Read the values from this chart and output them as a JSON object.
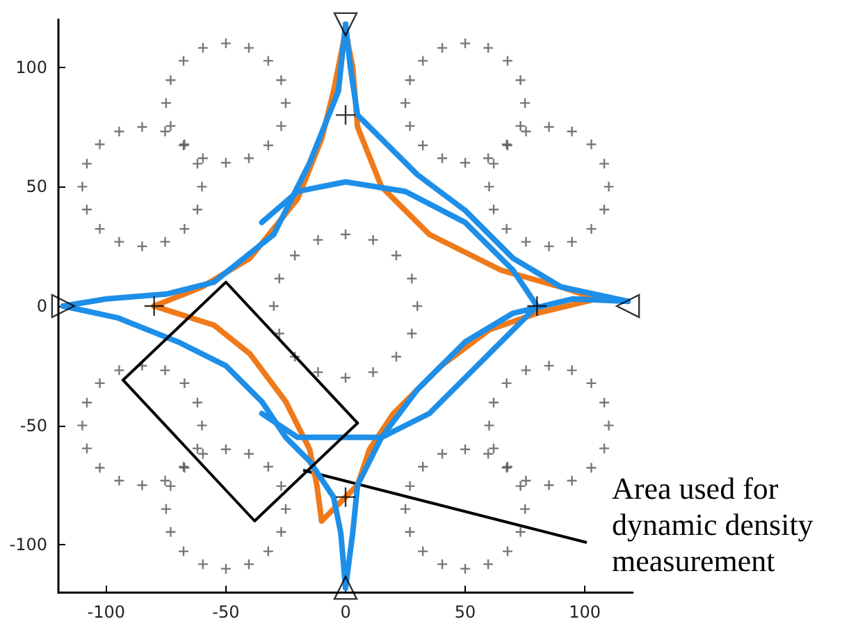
{
  "chart_data": {
    "type": "scatter",
    "xlim": [
      -120,
      120
    ],
    "ylim": [
      -120,
      120
    ],
    "xticks": [
      -100,
      -50,
      0,
      50,
      100
    ],
    "yticks": [
      -100,
      -50,
      0,
      50,
      100
    ],
    "annotations": [
      "Area used for dynamic density measurement"
    ],
    "series": [
      {
        "marker": "cross",
        "color": "#555555",
        "x": [
          -25,
          -26.9,
          -32.3,
          -40.4,
          -50,
          -59.6,
          -67.7,
          -73.1,
          -75,
          -73.1,
          -67.7,
          -59.6,
          -50,
          -40.4,
          -32.3,
          -26.9
        ],
        "values": [
          85,
          94.6,
          102.7,
          108.1,
          110,
          108.1,
          102.7,
          94.6,
          85,
          75.4,
          67.3,
          61.9,
          60,
          61.9,
          67.3,
          75.4
        ]
      },
      {
        "marker": "cross",
        "color": "#555555",
        "x": [
          -60,
          -61.9,
          -67.3,
          -75.4,
          -85,
          -94.6,
          -102.7,
          -108.1,
          -110,
          -108.1,
          -102.7,
          -94.6,
          -85,
          -75.4,
          -67.3,
          -61.9
        ],
        "values": [
          50,
          59.6,
          67.7,
          73.1,
          75,
          73.1,
          67.7,
          59.6,
          50,
          40.4,
          32.3,
          26.9,
          25,
          26.9,
          32.3,
          40.4
        ]
      },
      {
        "marker": "cross",
        "color": "#555555",
        "x": [
          -60,
          -61.9,
          -67.3,
          -75.4,
          -85,
          -94.6,
          -102.7,
          -108.1,
          -110,
          -108.1,
          -102.7,
          -94.6,
          -85,
          -75.4,
          -67.3,
          -61.9
        ],
        "values": [
          -50,
          -40.4,
          -32.3,
          -26.9,
          -25,
          -26.9,
          -32.3,
          -40.4,
          -50,
          -59.6,
          -67.7,
          -73.1,
          -75,
          -73.1,
          -67.7,
          -59.6
        ]
      },
      {
        "marker": "cross",
        "color": "#555555",
        "x": [
          -25,
          -26.9,
          -32.3,
          -40.4,
          -50,
          -59.6,
          -67.7,
          -73.1,
          -75,
          -73.1,
          -67.7,
          -59.6,
          -50,
          -40.4,
          -32.3,
          -26.9
        ],
        "values": [
          -85,
          -75.4,
          -67.3,
          -61.9,
          -60,
          -61.9,
          -67.3,
          -75.4,
          -85,
          -94.6,
          -102.7,
          -108.1,
          -110,
          -108.1,
          -102.7,
          -94.6
        ]
      },
      {
        "marker": "cross",
        "color": "#555555",
        "x": [
          75,
          73.1,
          67.7,
          59.6,
          50,
          40.4,
          32.3,
          26.9,
          25,
          26.9,
          32.3,
          40.4,
          50,
          59.6,
          67.7,
          73.1
        ],
        "values": [
          85,
          94.6,
          102.7,
          108.1,
          110,
          108.1,
          102.7,
          94.6,
          85,
          75.4,
          67.3,
          61.9,
          60,
          61.9,
          67.3,
          75.4
        ]
      },
      {
        "marker": "cross",
        "color": "#555555",
        "x": [
          110,
          108.1,
          102.7,
          94.6,
          85,
          75.4,
          67.3,
          61.9,
          60,
          61.9,
          67.3,
          75.4,
          85,
          94.6,
          102.7,
          108.1
        ],
        "values": [
          50,
          59.6,
          67.7,
          73.1,
          75,
          73.1,
          67.7,
          59.6,
          50,
          40.4,
          32.3,
          26.9,
          25,
          26.9,
          32.3,
          40.4
        ]
      },
      {
        "marker": "cross",
        "color": "#555555",
        "x": [
          110,
          108.1,
          102.7,
          94.6,
          85,
          75.4,
          67.3,
          61.9,
          60,
          61.9,
          67.3,
          75.4,
          85,
          94.6,
          102.7,
          108.1
        ],
        "values": [
          -50,
          -40.4,
          -32.3,
          -26.9,
          -25,
          -26.9,
          -32.3,
          -40.4,
          -50,
          -59.6,
          -67.7,
          -73.1,
          -75,
          -73.1,
          -67.7,
          -59.6
        ]
      },
      {
        "marker": "cross",
        "color": "#555555",
        "x": [
          75,
          73.1,
          67.7,
          59.6,
          50,
          40.4,
          32.3,
          26.9,
          25,
          26.9,
          32.3,
          40.4,
          50,
          59.6,
          67.7,
          73.1
        ],
        "values": [
          -85,
          -75.4,
          -67.3,
          -61.9,
          -60,
          -61.9,
          -67.3,
          -75.4,
          -85,
          -94.6,
          -102.7,
          -108.1,
          -110,
          -108.1,
          -102.7,
          -94.6
        ]
      },
      {
        "marker": "cross",
        "color": "#555555",
        "x": [
          30,
          27.7,
          21.2,
          11.5,
          0,
          -11.5,
          -21.2,
          -27.7,
          -30,
          -27.7,
          -21.2,
          -11.5,
          0,
          11.5,
          21.2,
          27.7
        ],
        "values": [
          0,
          11.5,
          21.2,
          27.7,
          30,
          27.7,
          21.2,
          11.5,
          0,
          -11.5,
          -21.2,
          -27.7,
          -30,
          -27.7,
          -21.2,
          -11.5
        ]
      },
      {
        "type": "line",
        "marker": "none",
        "line_style": "solid",
        "color": "#f07a1a",
        "x": [
          -80,
          -60,
          -40,
          -20,
          -10,
          -5,
          0
        ],
        "values": [
          0,
          8,
          20,
          45,
          70,
          90,
          115
        ]
      },
      {
        "type": "line",
        "marker": "none",
        "line_style": "solid",
        "color": "#f07a1a",
        "x": [
          0,
          3,
          5,
          15,
          35,
          65,
          90,
          105
        ],
        "values": [
          115,
          100,
          75,
          50,
          30,
          15,
          8,
          3
        ]
      },
      {
        "type": "line",
        "marker": "none",
        "line_style": "solid",
        "color": "#f07a1a",
        "x": [
          -80,
          -55,
          -40,
          -25,
          -15,
          -12,
          -10
        ],
        "values": [
          0,
          -8,
          -20,
          -40,
          -60,
          -75,
          -90
        ]
      },
      {
        "type": "line",
        "marker": "none",
        "line_style": "solid",
        "color": "#f07a1a",
        "x": [
          -10,
          5,
          10,
          20,
          40,
          60,
          80,
          105
        ],
        "values": [
          -90,
          -75,
          -60,
          -45,
          -25,
          -10,
          -3,
          3
        ]
      },
      {
        "type": "line",
        "marker": "none",
        "line_style": "solid",
        "color": "#1e8fe8",
        "x": [
          -118,
          -100,
          -75,
          -55,
          -45,
          -30,
          -15,
          -3,
          0
        ],
        "values": [
          0,
          3,
          5,
          10,
          18,
          30,
          60,
          90,
          118
        ]
      },
      {
        "type": "line",
        "marker": "none",
        "line_style": "solid",
        "color": "#1e8fe8",
        "x": [
          0,
          2,
          5,
          15,
          30,
          50,
          70,
          90,
          118
        ],
        "values": [
          118,
          100,
          80,
          70,
          55,
          40,
          20,
          8,
          2
        ]
      },
      {
        "type": "line",
        "marker": "none",
        "line_style": "solid",
        "color": "#1e8fe8",
        "x": [
          -118,
          -95,
          -70,
          -50,
          -35,
          -25,
          -15,
          -5,
          -2,
          0
        ],
        "values": [
          0,
          -5,
          -15,
          -25,
          -40,
          -55,
          -65,
          -80,
          -95,
          -118
        ]
      },
      {
        "type": "line",
        "marker": "none",
        "line_style": "solid",
        "color": "#1e8fe8",
        "x": [
          0,
          3,
          5,
          15,
          30,
          50,
          70,
          95,
          118
        ],
        "values": [
          -118,
          -95,
          -75,
          -55,
          -35,
          -15,
          -3,
          3,
          2
        ]
      },
      {
        "type": "line",
        "marker": "none",
        "line_style": "solid",
        "color": "#1e8fe8",
        "x": [
          -35,
          -20,
          0,
          25,
          50,
          70,
          80
        ],
        "values": [
          35,
          48,
          52,
          48,
          35,
          15,
          0
        ]
      },
      {
        "type": "line",
        "marker": "none",
        "line_style": "solid",
        "color": "#1e8fe8",
        "x": [
          -35,
          -20,
          -5,
          15,
          35,
          60,
          80
        ],
        "values": [
          -45,
          -55,
          -55,
          -55,
          -45,
          -20,
          0
        ]
      },
      {
        "marker": "cross",
        "color": "#000000",
        "x": [
          0,
          -80,
          80,
          0
        ],
        "values": [
          80,
          0,
          0,
          -80
        ]
      },
      {
        "marker": "triangle",
        "color": "#000000",
        "x": [
          0,
          0,
          -118,
          118
        ],
        "values": [
          118,
          -118,
          0,
          0
        ]
      },
      {
        "type": "line",
        "marker": "none",
        "line_style": "solid",
        "color": "#000000",
        "x": [
          -93,
          -50,
          5
        ],
        "values": [
          -31,
          10,
          -49
        ]
      },
      {
        "type": "line",
        "marker": "none",
        "line_style": "solid",
        "color": "#000000",
        "x": [
          -93,
          -38,
          5
        ],
        "values": [
          -31,
          -90,
          -49
        ]
      }
    ]
  }
}
